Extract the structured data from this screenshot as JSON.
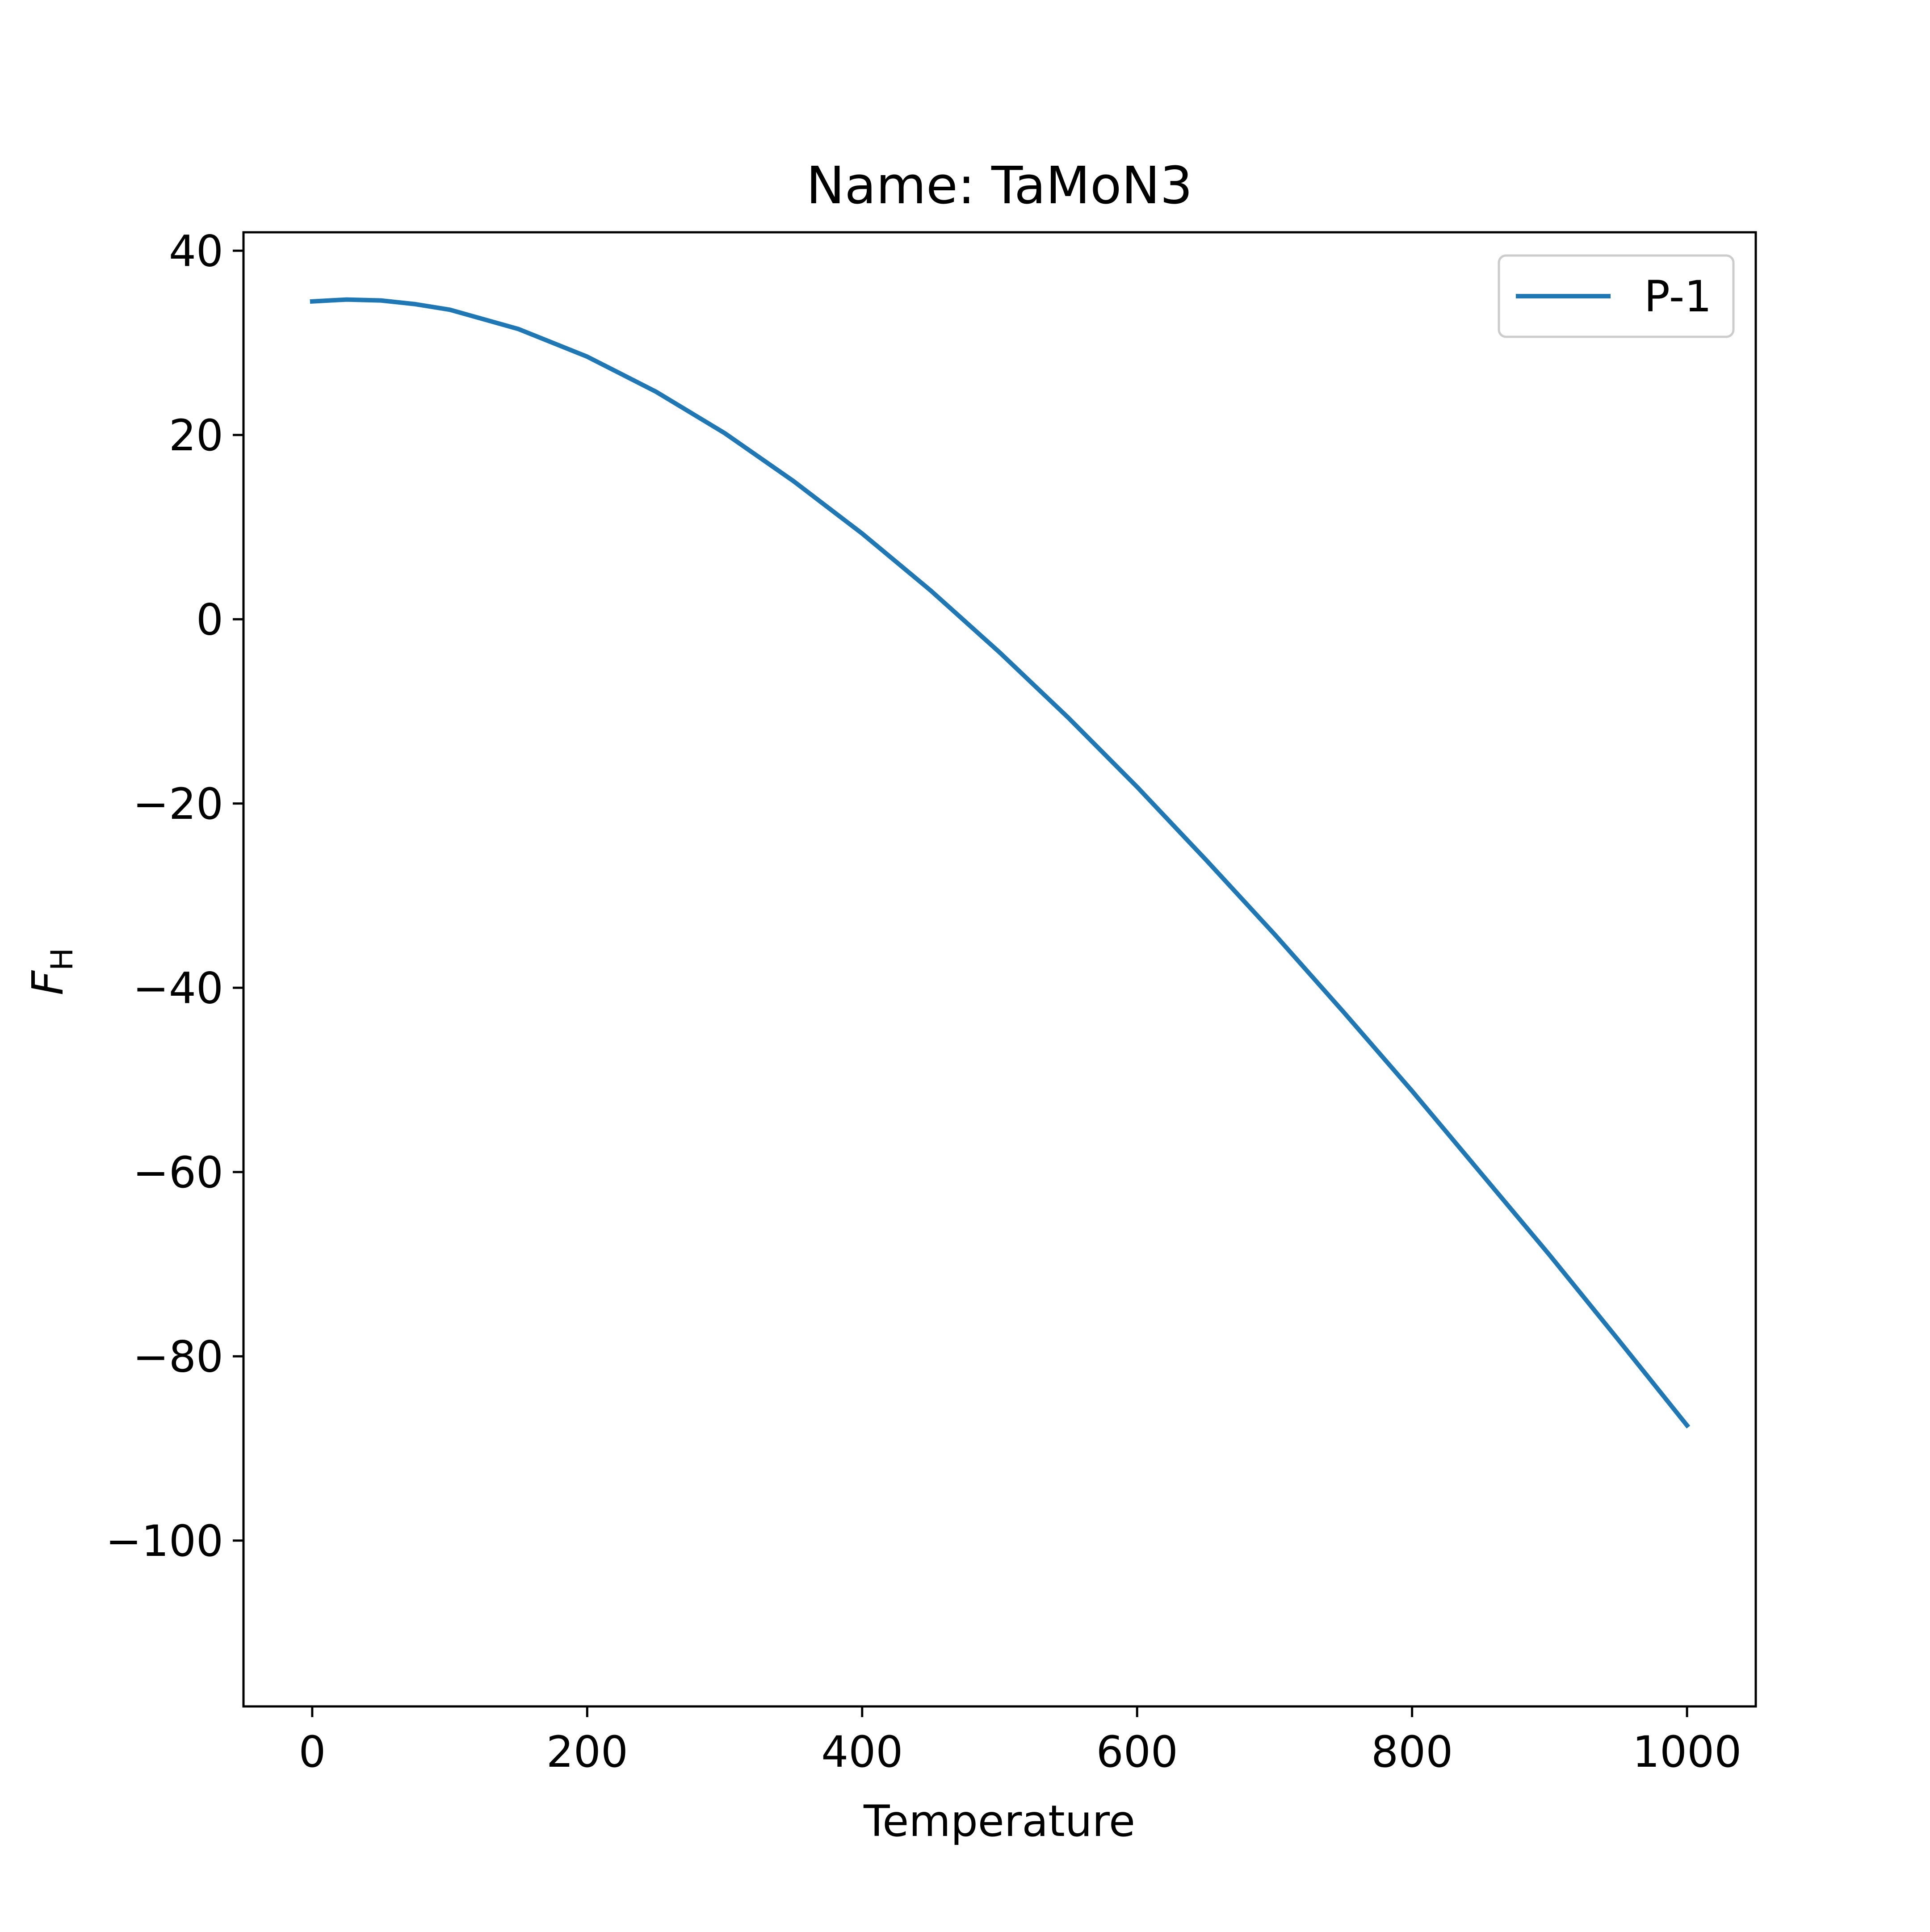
{
  "chart_data": {
    "type": "line",
    "title": "Name: TaMoN3",
    "xlabel": "Temperature",
    "ylabel_main": "F",
    "ylabel_sub": "H",
    "xlim": [
      -50,
      1050
    ],
    "ylim": [
      -118,
      42
    ],
    "xticks": [
      0,
      200,
      400,
      600,
      800,
      1000
    ],
    "yticks": [
      -100,
      -80,
      -60,
      -40,
      -20,
      0,
      20,
      40
    ],
    "xtick_labels": [
      "0",
      "200",
      "400",
      "600",
      "800",
      "1000"
    ],
    "ytick_labels": [
      "−100",
      "−80",
      "−60",
      "−40",
      "−20",
      "0",
      "20",
      "40"
    ],
    "grid": false,
    "legend": {
      "placement": "top-right"
    },
    "series": [
      {
        "name": "P-1",
        "color": "#1f77b4",
        "x": [
          0,
          25,
          50,
          75,
          100,
          150,
          200,
          250,
          300,
          350,
          400,
          450,
          500,
          550,
          600,
          650,
          700,
          750,
          800,
          850,
          900,
          950,
          1000
        ],
        "y": [
          34.5,
          34.7,
          34.6,
          34.2,
          33.6,
          31.5,
          28.5,
          24.7,
          20.2,
          15.0,
          9.3,
          3.1,
          -3.6,
          -10.7,
          -18.2,
          -26.1,
          -34.2,
          -42.6,
          -51.2,
          -60.1,
          -69.0,
          -78.2,
          -87.5
        ]
      }
    ]
  }
}
